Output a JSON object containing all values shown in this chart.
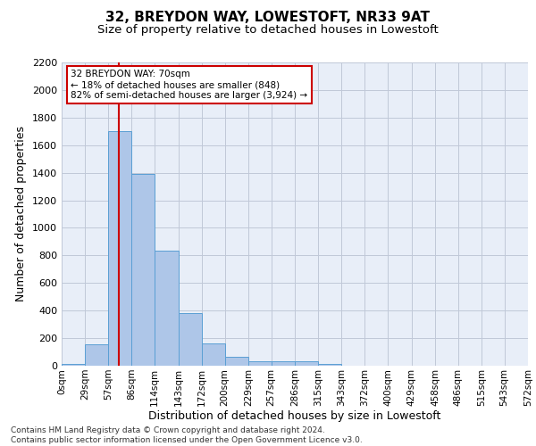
{
  "title": "32, BREYDON WAY, LOWESTOFT, NR33 9AT",
  "subtitle": "Size of property relative to detached houses in Lowestoft",
  "xlabel": "Distribution of detached houses by size in Lowestoft",
  "ylabel": "Number of detached properties",
  "footer_line1": "Contains HM Land Registry data © Crown copyright and database right 2024.",
  "footer_line2": "Contains public sector information licensed under the Open Government Licence v3.0.",
  "bin_edges": [
    0,
    29,
    57,
    86,
    114,
    143,
    172,
    200,
    229,
    257,
    286,
    315,
    343,
    372,
    400,
    429,
    458,
    486,
    515,
    543,
    572
  ],
  "bar_heights": [
    15,
    155,
    1700,
    1390,
    835,
    385,
    165,
    65,
    35,
    30,
    30,
    15,
    0,
    0,
    0,
    0,
    0,
    0,
    0,
    0
  ],
  "bar_color": "#aec6e8",
  "bar_edge_color": "#5a9fd4",
  "grid_color": "#c0c8d8",
  "background_color": "#e8eef8",
  "property_size": 70,
  "vline_color": "#cc0000",
  "annotation_line1": "32 BREYDON WAY: 70sqm",
  "annotation_line2": "← 18% of detached houses are smaller (848)",
  "annotation_line3": "82% of semi-detached houses are larger (3,924) →",
  "annotation_box_color": "#cc0000",
  "annotation_bg": "#ffffff",
  "ylim": [
    0,
    2200
  ],
  "yticks": [
    0,
    200,
    400,
    600,
    800,
    1000,
    1200,
    1400,
    1600,
    1800,
    2000,
    2200
  ],
  "title_fontsize": 11,
  "subtitle_fontsize": 9.5,
  "tick_label_fontsize": 7.5,
  "axis_label_fontsize": 9,
  "footer_fontsize": 6.5
}
